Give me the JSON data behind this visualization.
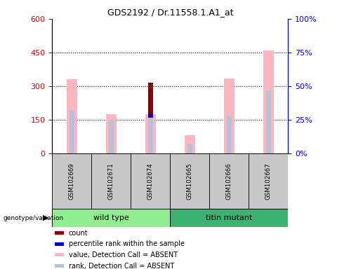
{
  "title": "GDS2192 / Dr.11558.1.A1_at",
  "samples": [
    "GSM102669",
    "GSM102671",
    "GSM102674",
    "GSM102665",
    "GSM102666",
    "GSM102667"
  ],
  "left_yaxis": {
    "min": 0,
    "max": 600,
    "ticks": [
      0,
      150,
      300,
      450,
      600
    ],
    "color": "#CC0000"
  },
  "right_yaxis": {
    "min": 0,
    "max": 100,
    "ticks": [
      0,
      25,
      50,
      75,
      100
    ],
    "color": "#0000CC"
  },
  "bar_data": [
    {
      "sample": "GSM102669",
      "value_absent": 330,
      "rank_absent_pct": 32,
      "count": 0,
      "percentile_pct": 0
    },
    {
      "sample": "GSM102671",
      "value_absent": 175,
      "rank_absent_pct": 25,
      "count": 0,
      "percentile_pct": 0
    },
    {
      "sample": "GSM102674",
      "value_absent": 175,
      "rank_absent_pct": 28,
      "count": 315,
      "percentile_pct": 28
    },
    {
      "sample": "GSM102665",
      "value_absent": 82,
      "rank_absent_pct": 7,
      "count": 0,
      "percentile_pct": 0
    },
    {
      "sample": "GSM102666",
      "value_absent": 335,
      "rank_absent_pct": 28,
      "count": 0,
      "percentile_pct": 0
    },
    {
      "sample": "GSM102667",
      "value_absent": 460,
      "rank_absent_pct": 47,
      "count": 0,
      "percentile_pct": 0
    }
  ],
  "colors": {
    "count": "#8B0000",
    "percentile": "#0000CD",
    "value_absent": "#FFB6C1",
    "rank_absent": "#B0C4DE",
    "group_wt": "#90EE90",
    "group_tm": "#3CB371",
    "sample_bg": "#C8C8C8"
  },
  "legend": [
    {
      "label": "count",
      "color": "#8B0000"
    },
    {
      "label": "percentile rank within the sample",
      "color": "#0000CD"
    },
    {
      "label": "value, Detection Call = ABSENT",
      "color": "#FFB6C1"
    },
    {
      "label": "rank, Detection Call = ABSENT",
      "color": "#B0C4DE"
    }
  ]
}
